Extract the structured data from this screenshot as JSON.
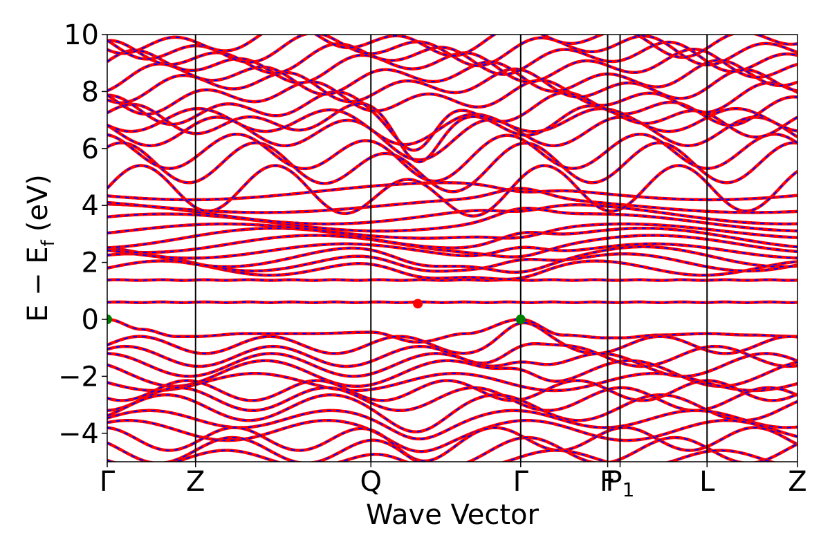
{
  "chart_data": {
    "type": "line",
    "title": "",
    "xlabel": "Wave Vector",
    "ylabel": "E − E_f (eV)",
    "ylabel_main": "E − E",
    "ylabel_sub": "f",
    "ylabel_units": "(eV)",
    "ylim": [
      -5,
      10
    ],
    "yticks": [
      -4,
      -2,
      0,
      2,
      4,
      6,
      8,
      10
    ],
    "ytick_labels": [
      "−4",
      "−2",
      "0",
      "2",
      "4",
      "6",
      "8",
      "10"
    ],
    "xlim": [
      0,
      100
    ],
    "kpoints": [
      {
        "label": "Γ",
        "x": 0
      },
      {
        "label": "Z",
        "x": 12.8
      },
      {
        "label": "Q",
        "x": 38.2
      },
      {
        "label": "Γ",
        "x": 59.9
      },
      {
        "label": "F",
        "x": 72.5
      },
      {
        "label": "P",
        "sub": "1",
        "x": 74.3
      },
      {
        "label": "L",
        "x": 86.9
      },
      {
        "label": "Z",
        "x": 100
      }
    ],
    "colors": {
      "dft_bands": "#ff0000",
      "wannier_bands": "#0000ff",
      "vbm": "#008000",
      "cbm": "#ff0000",
      "frame": "#000000"
    },
    "flat_bands": [
      {
        "name": "flat band",
        "energy": 0.6
      },
      {
        "name": "band",
        "energy": 1.38
      }
    ],
    "valence_top": {
      "x": [
        0,
        5,
        10,
        12.8,
        20,
        30,
        38.2,
        45,
        52,
        59.9,
        66,
        72.5,
        74.3,
        80,
        86.9,
        93,
        100
      ],
      "y": [
        0.0,
        -0.35,
        -0.6,
        -0.6,
        -0.5,
        -0.5,
        -0.45,
        -0.8,
        -0.5,
        0.0,
        -0.55,
        -0.65,
        -0.65,
        -0.55,
        -0.5,
        -0.55,
        -0.6
      ]
    },
    "markers": [
      {
        "name": "vbm",
        "x": 0,
        "y": 0.0
      },
      {
        "name": "vbm",
        "x": 59.9,
        "y": 0.0
      },
      {
        "name": "cbm",
        "x": 45,
        "y": 0.55
      }
    ]
  }
}
